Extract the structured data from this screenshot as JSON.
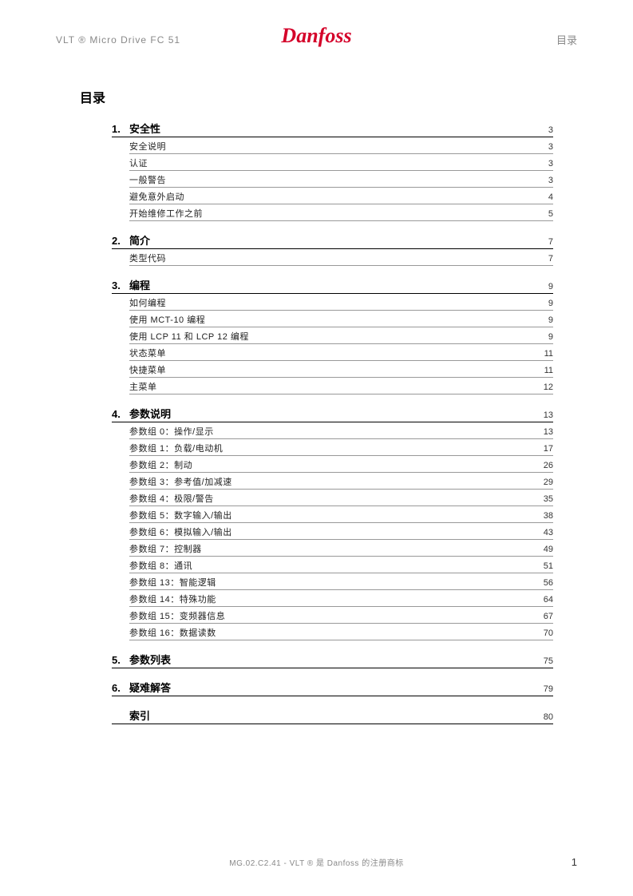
{
  "header": {
    "left": "VLT ® Micro Drive FC 51",
    "right": "目录",
    "logo": "Danfoss"
  },
  "toc_title": "目录",
  "sections": [
    {
      "num": "1.",
      "title": "安全性",
      "page": "3",
      "items": [
        {
          "title": "安全说明",
          "page": "3"
        },
        {
          "title": "认证",
          "page": "3"
        },
        {
          "title": "一般警告",
          "page": "3"
        },
        {
          "title": "避免意外启动",
          "page": "4"
        },
        {
          "title": "开始维修工作之前",
          "page": "5"
        }
      ]
    },
    {
      "num": "2.",
      "title": "简介",
      "page": "7",
      "items": [
        {
          "title": "类型代码",
          "page": "7"
        }
      ]
    },
    {
      "num": "3.",
      "title": "编程",
      "page": "9",
      "items": [
        {
          "title": "如何编程",
          "page": "9"
        },
        {
          "title": "使用 MCT-10 编程",
          "page": "9"
        },
        {
          "title": "使用 LCP 11 和 LCP 12 编程",
          "page": "9"
        },
        {
          "title": "状态菜单",
          "page": "11"
        },
        {
          "title": "快捷菜单",
          "page": "11"
        },
        {
          "title": "主菜单",
          "page": "12"
        }
      ]
    },
    {
      "num": "4.",
      "title": "参数说明",
      "page": "13",
      "items": [
        {
          "title": "参数组 0：操作/显示",
          "page": "13"
        },
        {
          "title": "参数组 1：负载/电动机",
          "page": "17"
        },
        {
          "title": "参数组 2：制动",
          "page": "26"
        },
        {
          "title": "参数组 3：参考值/加减速",
          "page": "29"
        },
        {
          "title": "参数组 4：极限/警告",
          "page": "35"
        },
        {
          "title": "参数组 5：数字输入/输出",
          "page": "38"
        },
        {
          "title": "参数组 6：模拟输入/输出",
          "page": "43"
        },
        {
          "title": "参数组 7：控制器",
          "page": "49"
        },
        {
          "title": "参数组 8：通讯",
          "page": "51"
        },
        {
          "title": "参数组 13：智能逻辑",
          "page": "56"
        },
        {
          "title": "参数组 14：特殊功能",
          "page": "64"
        },
        {
          "title": "参数组 15：变频器信息",
          "page": "67"
        },
        {
          "title": "参数组 16：数据读数",
          "page": "70"
        }
      ]
    },
    {
      "num": "5.",
      "title": "参数列表",
      "page": "75",
      "items": []
    },
    {
      "num": "6.",
      "title": "疑难解答",
      "page": "79",
      "items": []
    },
    {
      "num": "",
      "title": "索引",
      "page": "80",
      "items": []
    }
  ],
  "footer": {
    "text": "MG.02.C2.41 - VLT ® 是 Danfoss 的注册商标",
    "pagenum": "1"
  },
  "colors": {
    "logo": "#d40029",
    "header_text": "#888888",
    "body_text": "#000000",
    "item_text": "#222222",
    "item_border": "#999999",
    "section_border": "#000000",
    "background": "#ffffff"
  },
  "typography": {
    "header_fontsize": 12,
    "toc_title_fontsize": 16,
    "section_fontsize": 13,
    "item_fontsize": 11,
    "footer_fontsize": 10
  }
}
